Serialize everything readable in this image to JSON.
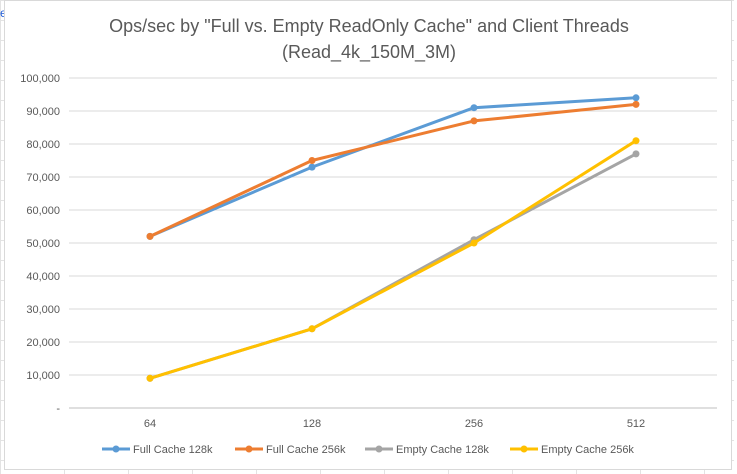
{
  "chart_data": {
    "type": "line",
    "title_line1": "Ops/sec by \"Full vs. Empty ReadOnly Cache\" and Client Threads",
    "title_line2": "(Read_4k_150M_3M)",
    "xlabel": "",
    "ylabel": "",
    "categories": [
      "64",
      "128",
      "256",
      "512"
    ],
    "ylim": [
      0,
      100000
    ],
    "y_ticks": [
      0,
      10000,
      20000,
      30000,
      40000,
      50000,
      60000,
      70000,
      80000,
      90000,
      100000
    ],
    "y_tick_labels": [
      "-",
      "10,000",
      "20,000",
      "30,000",
      "40,000",
      "50,000",
      "60,000",
      "70,000",
      "80,000",
      "90,000",
      "100,000"
    ],
    "grid": true,
    "legend_position": "bottom",
    "series": [
      {
        "name": "Full Cache 128k",
        "color": "#5b9bd5",
        "values": [
          52000,
          73000,
          91000,
          94000
        ]
      },
      {
        "name": "Full Cache 256k",
        "color": "#ed7d31",
        "values": [
          52000,
          75000,
          87000,
          92000
        ]
      },
      {
        "name": "Empty Cache 128k",
        "color": "#a5a5a5",
        "values": [
          9000,
          24000,
          51000,
          77000
        ]
      },
      {
        "name": "Empty Cache 256k",
        "color": "#ffc000",
        "values": [
          9000,
          24000,
          50000,
          81000
        ]
      }
    ]
  },
  "sheet": {
    "cell_text": "e"
  }
}
